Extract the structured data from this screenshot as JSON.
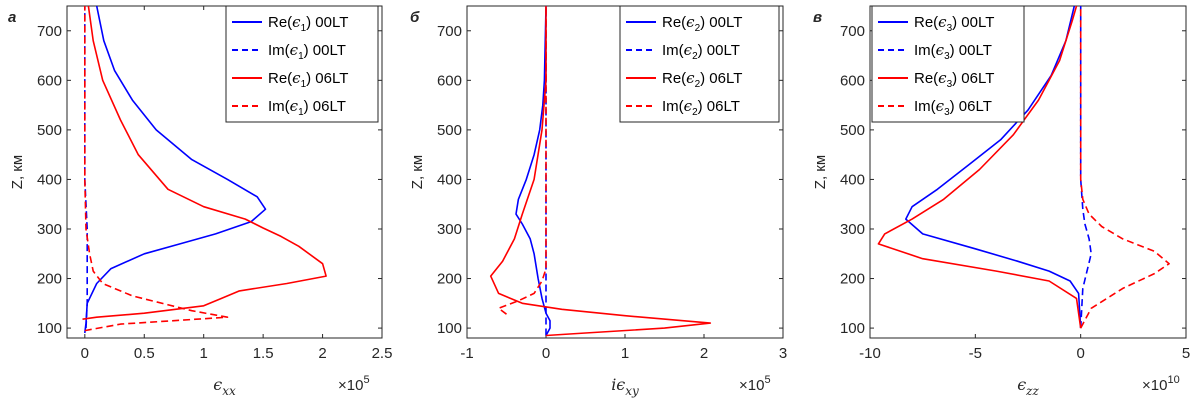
{
  "chart_data": [
    {
      "type": "line",
      "panel_label": "а",
      "xlabel": "ϵ",
      "xlabel_sub": "xx",
      "ylabel": "Z, км",
      "x_multiplier_base": "×10",
      "x_multiplier_exp": "5",
      "xlim": [
        -0.15,
        2.5
      ],
      "ylim": [
        80,
        750
      ],
      "xticks": [
        "0",
        "0.5",
        "1",
        "1.5",
        "2",
        "2.5"
      ],
      "xtick_values": [
        0,
        0.5,
        1,
        1.5,
        2,
        2.5
      ],
      "yticks": [
        "100",
        "200",
        "300",
        "400",
        "500",
        "600",
        "700"
      ],
      "ytick_values": [
        100,
        200,
        300,
        400,
        500,
        600,
        700
      ],
      "legend": {
        "position": "top-right",
        "entries": [
          {
            "pre": "Re(",
            "sym": "ϵ",
            "sub": "1",
            "post": ") 00LT",
            "color": "#0000ff",
            "dash": "solid"
          },
          {
            "pre": "Im(",
            "sym": "ϵ",
            "sub": "1",
            "post": ") 00LT",
            "color": "#0000ff",
            "dash": "dashed"
          },
          {
            "pre": "Re(",
            "sym": "ϵ",
            "sub": "1",
            "post": ") 06LT",
            "color": "#ff0000",
            "dash": "solid"
          },
          {
            "pre": "Im(",
            "sym": "ϵ",
            "sub": "1",
            "post": ") 06LT",
            "color": "#ff0000",
            "dash": "dashed"
          }
        ]
      },
      "series": [
        {
          "color": "#0000ff",
          "dash": "solid",
          "points": [
            [
              0.0,
              90
            ],
            [
              0.01,
              110
            ],
            [
              0.02,
              150
            ],
            [
              0.1,
              190
            ],
            [
              0.22,
              220
            ],
            [
              0.5,
              250
            ],
            [
              0.8,
              270
            ],
            [
              1.1,
              290
            ],
            [
              1.4,
              315
            ],
            [
              1.52,
              340
            ],
            [
              1.45,
              365
            ],
            [
              1.2,
              400
            ],
            [
              0.9,
              440
            ],
            [
              0.6,
              500
            ],
            [
              0.4,
              560
            ],
            [
              0.25,
              620
            ],
            [
              0.16,
              680
            ],
            [
              0.1,
              750
            ]
          ]
        },
        {
          "color": "#0000ff",
          "dash": "dashed",
          "points": [
            [
              0.01,
              100
            ],
            [
              0.02,
              150
            ],
            [
              0.02,
              200
            ],
            [
              0.02,
              250
            ],
            [
              0.02,
              300
            ],
            [
              0.01,
              350
            ],
            [
              0.0,
              400
            ],
            [
              0.0,
              500
            ],
            [
              0.0,
              750
            ]
          ]
        },
        {
          "color": "#ff0000",
          "dash": "solid",
          "points": [
            [
              -0.02,
              118
            ],
            [
              0.1,
              122
            ],
            [
              0.5,
              130
            ],
            [
              1.0,
              145
            ],
            [
              1.15,
              160
            ],
            [
              1.3,
              175
            ],
            [
              1.7,
              190
            ],
            [
              2.03,
              205
            ],
            [
              2.0,
              230
            ],
            [
              1.8,
              265
            ],
            [
              1.65,
              285
            ],
            [
              1.5,
              302
            ],
            [
              1.35,
              320
            ],
            [
              1.0,
              345
            ],
            [
              0.7,
              380
            ],
            [
              0.45,
              450
            ],
            [
              0.3,
              520
            ],
            [
              0.15,
              600
            ],
            [
              0.07,
              680
            ],
            [
              0.03,
              750
            ]
          ]
        },
        {
          "color": "#ff0000",
          "dash": "dashed",
          "points": [
            [
              0.0,
              95
            ],
            [
              0.3,
              108
            ],
            [
              1.2,
              122
            ],
            [
              0.9,
              135
            ],
            [
              0.4,
              165
            ],
            [
              0.15,
              190
            ],
            [
              0.07,
              215
            ],
            [
              0.04,
              250
            ],
            [
              0.01,
              300
            ],
            [
              0.0,
              400
            ],
            [
              0.0,
              750
            ]
          ]
        }
      ]
    },
    {
      "type": "line",
      "panel_label": "б",
      "xlabel": "iϵ",
      "xlabel_sub": "xy",
      "ylabel": "Z, км",
      "x_multiplier_base": "×10",
      "x_multiplier_exp": "5",
      "xlim": [
        -1,
        3
      ],
      "ylim": [
        80,
        750
      ],
      "xticks": [
        "-1",
        "0",
        "1",
        "2",
        "3"
      ],
      "xtick_values": [
        -1,
        0,
        1,
        2,
        3
      ],
      "yticks": [
        "100",
        "200",
        "300",
        "400",
        "500",
        "600",
        "700"
      ],
      "ytick_values": [
        100,
        200,
        300,
        400,
        500,
        600,
        700
      ],
      "legend": {
        "position": "top-right",
        "entries": [
          {
            "pre": "Re(",
            "sym": "ϵ",
            "sub": "2",
            "post": ") 00LT",
            "color": "#0000ff",
            "dash": "solid"
          },
          {
            "pre": "Im(",
            "sym": "ϵ",
            "sub": "2",
            "post": ") 00LT",
            "color": "#0000ff",
            "dash": "dashed"
          },
          {
            "pre": "Re(",
            "sym": "ϵ",
            "sub": "2",
            "post": ") 06LT",
            "color": "#ff0000",
            "dash": "solid"
          },
          {
            "pre": "Im(",
            "sym": "ϵ",
            "sub": "2",
            "post": ") 06LT",
            "color": "#ff0000",
            "dash": "dashed"
          }
        ]
      },
      "series": [
        {
          "color": "#0000ff",
          "dash": "solid",
          "points": [
            [
              0.0,
              85
            ],
            [
              0.05,
              100
            ],
            [
              0.05,
              115
            ],
            [
              0.0,
              130
            ],
            [
              -0.05,
              160
            ],
            [
              -0.1,
              200
            ],
            [
              -0.15,
              250
            ],
            [
              -0.2,
              280
            ],
            [
              -0.3,
              310
            ],
            [
              -0.38,
              330
            ],
            [
              -0.35,
              360
            ],
            [
              -0.25,
              400
            ],
            [
              -0.15,
              450
            ],
            [
              -0.08,
              500
            ],
            [
              -0.04,
              550
            ],
            [
              -0.02,
              600
            ],
            [
              0.0,
              750
            ]
          ]
        },
        {
          "color": "#0000ff",
          "dash": "dashed",
          "points": [
            [
              0.0,
              85
            ],
            [
              0.0,
              750
            ]
          ]
        },
        {
          "color": "#ff0000",
          "dash": "solid",
          "points": [
            [
              0.0,
              85
            ],
            [
              0.5,
              90
            ],
            [
              1.5,
              100
            ],
            [
              2.08,
              110
            ],
            [
              1.0,
              125
            ],
            [
              0.2,
              138
            ],
            [
              -0.3,
              150
            ],
            [
              -0.6,
              170
            ],
            [
              -0.7,
              205
            ],
            [
              -0.55,
              235
            ],
            [
              -0.4,
              280
            ],
            [
              -0.3,
              330
            ],
            [
              -0.15,
              400
            ],
            [
              -0.05,
              500
            ],
            [
              0.0,
              600
            ],
            [
              0.0,
              750
            ]
          ]
        },
        {
          "color": "#ff0000",
          "dash": "dashed",
          "points": [
            [
              -0.5,
              128
            ],
            [
              -0.6,
              140
            ],
            [
              -0.35,
              155
            ],
            [
              -0.15,
              170
            ],
            [
              -0.05,
              195
            ],
            [
              0.0,
              220
            ],
            [
              0.0,
              300
            ],
            [
              0.0,
              750
            ]
          ]
        }
      ]
    },
    {
      "type": "line",
      "panel_label": "в",
      "xlabel": "ϵ",
      "xlabel_sub": "zz",
      "ylabel": "Z, км",
      "x_multiplier_base": "×10",
      "x_multiplier_exp": "10",
      "xlim": [
        -10,
        5
      ],
      "ylim": [
        80,
        750
      ],
      "xticks": [
        "-10",
        "-5",
        "0",
        "5"
      ],
      "xtick_values": [
        -10,
        -5,
        0,
        5
      ],
      "yticks": [
        "100",
        "200",
        "300",
        "400",
        "500",
        "600",
        "700"
      ],
      "ytick_values": [
        100,
        200,
        300,
        400,
        500,
        600,
        700
      ],
      "legend": {
        "position": "top-left",
        "entries": [
          {
            "pre": "Re(",
            "sym": "ϵ",
            "sub": "3",
            "post": ") 00LT",
            "color": "#0000ff",
            "dash": "solid"
          },
          {
            "pre": "Im(",
            "sym": "ϵ",
            "sub": "3",
            "post": ") 00LT",
            "color": "#0000ff",
            "dash": "dashed"
          },
          {
            "pre": "Re(",
            "sym": "ϵ",
            "sub": "3",
            "post": ") 06LT",
            "color": "#ff0000",
            "dash": "solid"
          },
          {
            "pre": "Im(",
            "sym": "ϵ",
            "sub": "3",
            "post": ") 06LT",
            "color": "#ff0000",
            "dash": "dashed"
          }
        ]
      },
      "series": [
        {
          "color": "#0000ff",
          "dash": "solid",
          "points": [
            [
              0.0,
              100
            ],
            [
              -0.1,
              170
            ],
            [
              -0.5,
              195
            ],
            [
              -1.5,
              215
            ],
            [
              -3,
              235
            ],
            [
              -5,
              260
            ],
            [
              -7.5,
              290
            ],
            [
              -8.3,
              320
            ],
            [
              -8.0,
              345
            ],
            [
              -6.8,
              380
            ],
            [
              -5.3,
              430
            ],
            [
              -3.8,
              480
            ],
            [
              -2.5,
              540
            ],
            [
              -1.4,
              610
            ],
            [
              -0.7,
              680
            ],
            [
              -0.3,
              750
            ]
          ]
        },
        {
          "color": "#0000ff",
          "dash": "dashed",
          "points": [
            [
              0.0,
              100
            ],
            [
              0.1,
              180
            ],
            [
              0.3,
              215
            ],
            [
              0.5,
              250
            ],
            [
              0.4,
              280
            ],
            [
              0.2,
              310
            ],
            [
              0.1,
              340
            ],
            [
              0.0,
              400
            ],
            [
              0.0,
              750
            ]
          ]
        },
        {
          "color": "#ff0000",
          "dash": "solid",
          "points": [
            [
              0.0,
              100
            ],
            [
              -0.2,
              160
            ],
            [
              -1.5,
              195
            ],
            [
              -4,
              215
            ],
            [
              -7.5,
              240
            ],
            [
              -9.6,
              270
            ],
            [
              -9.3,
              290
            ],
            [
              -8,
              320
            ],
            [
              -6.5,
              360
            ],
            [
              -4.8,
              420
            ],
            [
              -3.2,
              490
            ],
            [
              -2,
              560
            ],
            [
              -1,
              640
            ],
            [
              -0.4,
              720
            ],
            [
              -0.2,
              750
            ]
          ]
        },
        {
          "color": "#ff0000",
          "dash": "dashed",
          "points": [
            [
              0.0,
              100
            ],
            [
              0.5,
              140
            ],
            [
              2,
              180
            ],
            [
              3.5,
              210
            ],
            [
              4.2,
              230
            ],
            [
              3.5,
              255
            ],
            [
              2,
              280
            ],
            [
              1,
              305
            ],
            [
              0.4,
              330
            ],
            [
              0.1,
              360
            ],
            [
              0.0,
              400
            ],
            [
              0.0,
              750
            ]
          ]
        }
      ]
    }
  ]
}
